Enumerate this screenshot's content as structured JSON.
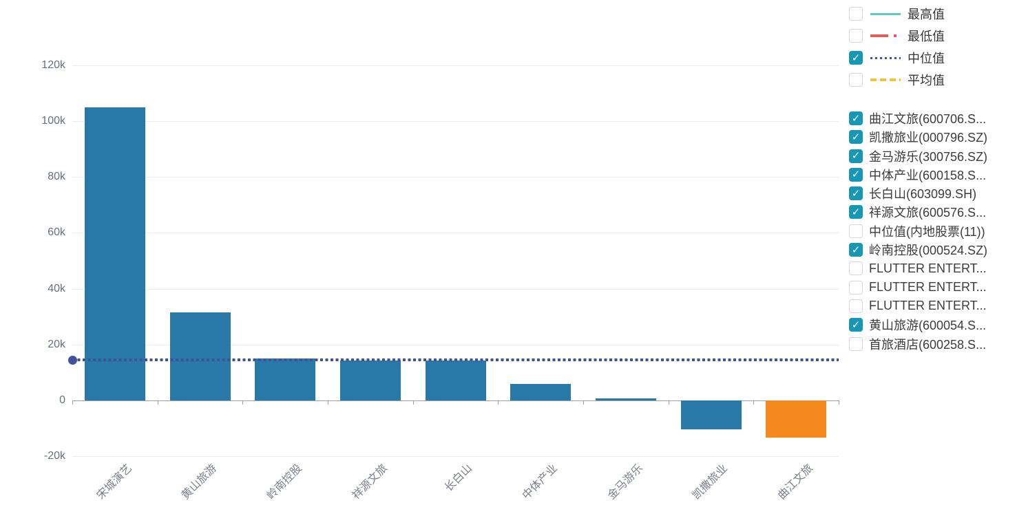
{
  "chart_data": {
    "type": "bar",
    "title": "",
    "xlabel": "",
    "ylabel": "",
    "categories": [
      "宋城演艺",
      "黄山旅游",
      "岭南控股",
      "祥源文旅",
      "长白山",
      "中体产业",
      "金马游乐",
      "凯撒旅业",
      "曲江文旅"
    ],
    "values": [
      105000,
      31500,
      15000,
      14200,
      14300,
      6000,
      800,
      -10300,
      -13300
    ],
    "bar_colors": [
      "#2879A8",
      "#2879A8",
      "#2879A8",
      "#2879A8",
      "#2879A8",
      "#2879A8",
      "#2879A8",
      "#2879A8",
      "#F6891E"
    ],
    "median_line": {
      "name": "中位值",
      "value": 14500,
      "color": "#41519E",
      "style": "dotted"
    },
    "ylim": [
      -20000,
      120000
    ],
    "y_ticks": [
      {
        "label": "120k",
        "value": 120000
      },
      {
        "label": "100k",
        "value": 100000
      },
      {
        "label": "80k",
        "value": 80000
      },
      {
        "label": "60k",
        "value": 60000
      },
      {
        "label": "40k",
        "value": 40000
      },
      {
        "label": "20k",
        "value": 20000
      },
      {
        "label": "0",
        "value": 0
      },
      {
        "label": "-20k",
        "value": -20000
      }
    ],
    "grid": true,
    "legend_position": "right"
  },
  "legend": {
    "stats": [
      {
        "label": "最高值",
        "checked": false,
        "color": "#5FC8C3",
        "style": "solid"
      },
      {
        "label": "最低值",
        "checked": false,
        "color": "#E05D5D",
        "style": "dash-dot"
      },
      {
        "label": "中位值",
        "checked": true,
        "color": "#41519E",
        "style": "dotted"
      },
      {
        "label": "平均值",
        "checked": false,
        "color": "#EFC33D",
        "style": "dashed"
      }
    ],
    "series": [
      {
        "label": "曲江文旅(600706.S...",
        "checked": true
      },
      {
        "label": "凯撒旅业(000796.SZ)",
        "checked": true
      },
      {
        "label": "金马游乐(300756.SZ)",
        "checked": true
      },
      {
        "label": "中体产业(600158.S...",
        "checked": true
      },
      {
        "label": "长白山(603099.SH)",
        "checked": true
      },
      {
        "label": "祥源文旅(600576.S...",
        "checked": true
      },
      {
        "label": "中位值(内地股票(11))",
        "checked": false
      },
      {
        "label": "岭南控股(000524.SZ)",
        "checked": true
      },
      {
        "label": "FLUTTER ENTERT...",
        "checked": false
      },
      {
        "label": "FLUTTER ENTERT...",
        "checked": false
      },
      {
        "label": "FLUTTER ENTERT...",
        "checked": false
      },
      {
        "label": "黄山旅游(600054.S...",
        "checked": true
      },
      {
        "label": "首旅酒店(600258.S...",
        "checked": false
      }
    ]
  },
  "colors": {
    "bar_primary": "#2879A8",
    "bar_highlight": "#F6891E",
    "median": "#41519E",
    "checkbox_checked": "#1697B5",
    "gridline": "#E7EBF5",
    "axis": "#9CA1A8",
    "y_label_text": "#66707A",
    "x_label_text": "#7C808A",
    "legend_text": "#363636"
  },
  "glyphs": {
    "check": "✓"
  }
}
